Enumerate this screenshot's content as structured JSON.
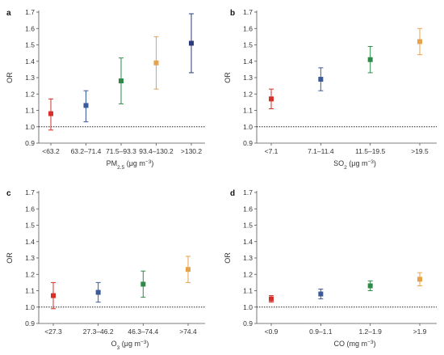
{
  "chart_data": [
    {
      "panel": "a",
      "type": "scatter",
      "ylabel": "OR",
      "xlabel": {
        "base": "PM",
        "sub": "2.5",
        "unit": " (μg m",
        "sup": "−3",
        "close": ")"
      },
      "ylim": [
        0.9,
        1.7
      ],
      "yticks": [
        "0.9",
        "1.0",
        "1.1",
        "1.2",
        "1.3",
        "1.4",
        "1.5",
        "1.6",
        "1.7"
      ],
      "reference_line": 1.0,
      "categories": [
        "<63.2",
        "63.2–71.4",
        "71.5–93.3",
        "93.4–130.2",
        ">130.2"
      ],
      "values": [
        1.08,
        1.13,
        1.28,
        1.39,
        1.51
      ],
      "lower": [
        0.98,
        1.03,
        1.14,
        1.23,
        1.33
      ],
      "upper": [
        1.17,
        1.22,
        1.42,
        1.55,
        1.69
      ],
      "colors": [
        "#d7302a",
        "#3a5a9a",
        "#2f8a4a",
        "#e8a24a",
        "#2a3d7a"
      ]
    },
    {
      "panel": "b",
      "type": "scatter",
      "ylabel": "OR",
      "xlabel": {
        "base": "SO",
        "sub": "2",
        "unit": " (μg m",
        "sup": "−3",
        "close": ")"
      },
      "ylim": [
        0.9,
        1.7
      ],
      "yticks": [
        "0.9",
        "1.0",
        "1.1",
        "1.2",
        "1.3",
        "1.4",
        "1.5",
        "1.6",
        "1.7"
      ],
      "reference_line": 1.0,
      "categories": [
        "<7.1",
        "7.1–11.4",
        "11.5–19.5",
        ">19.5"
      ],
      "values": [
        1.17,
        1.29,
        1.41,
        1.52
      ],
      "lower": [
        1.11,
        1.22,
        1.33,
        1.44
      ],
      "upper": [
        1.23,
        1.36,
        1.49,
        1.6
      ],
      "colors": [
        "#d7302a",
        "#3a5a9a",
        "#2f8a4a",
        "#e8a24a"
      ]
    },
    {
      "panel": "c",
      "type": "scatter",
      "ylabel": "OR",
      "xlabel": {
        "base": "O",
        "sub": "3",
        "unit": " (μg m",
        "sup": "−3",
        "close": ")"
      },
      "ylim": [
        0.9,
        1.7
      ],
      "yticks": [
        "0.9",
        "1.0",
        "1.1",
        "1.2",
        "1.3",
        "1.4",
        "1.5",
        "1.6",
        "1.7"
      ],
      "reference_line": 1.0,
      "categories": [
        "<27.3",
        "27.3–46.2",
        "46.3–74.4",
        ">74.4"
      ],
      "values": [
        1.07,
        1.09,
        1.14,
        1.23
      ],
      "lower": [
        0.99,
        1.03,
        1.06,
        1.15
      ],
      "upper": [
        1.15,
        1.15,
        1.22,
        1.31
      ],
      "colors": [
        "#d7302a",
        "#3a5a9a",
        "#2f8a4a",
        "#e8a24a"
      ]
    },
    {
      "panel": "d",
      "type": "scatter",
      "ylabel": "OR",
      "xlabel": {
        "base": "CO",
        "sub": "",
        "unit": " (mg m",
        "sup": "−3",
        "close": ")"
      },
      "ylim": [
        0.9,
        1.7
      ],
      "yticks": [
        "0.9",
        "1.0",
        "1.1",
        "1.2",
        "1.3",
        "1.4",
        "1.5",
        "1.6",
        "1.7"
      ],
      "reference_line": 1.0,
      "categories": [
        "<0.9",
        "0.9–1.1",
        "1.2–1.9",
        ">1.9"
      ],
      "values": [
        1.05,
        1.08,
        1.13,
        1.17
      ],
      "lower": [
        1.03,
        1.05,
        1.1,
        1.13
      ],
      "upper": [
        1.07,
        1.11,
        1.16,
        1.21
      ],
      "colors": [
        "#d7302a",
        "#3a5a9a",
        "#2f8a4a",
        "#e8a24a"
      ]
    }
  ]
}
